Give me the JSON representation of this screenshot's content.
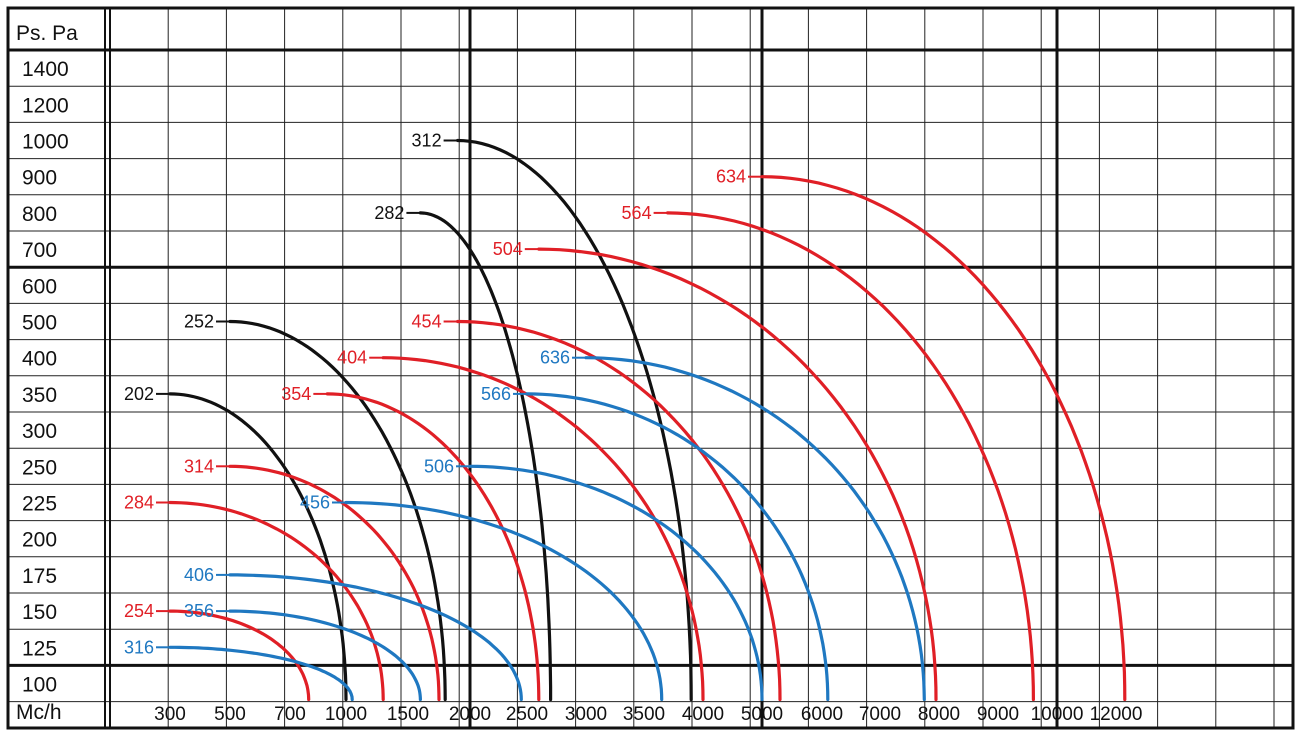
{
  "chart_data": {
    "type": "line",
    "title": "",
    "xlabel": "Mc/h",
    "ylabel": "Ps. Pa",
    "x_ticks": [
      "300",
      "500",
      "700",
      "1000",
      "1500",
      "2000",
      "2500",
      "3000",
      "3500",
      "4000",
      "5000",
      "6000",
      "7000",
      "8000",
      "9000",
      "10000",
      "12000"
    ],
    "y_ticks": [
      "1400",
      "1200",
      "1000",
      "900",
      "800",
      "700",
      "600",
      "500",
      "400",
      "350",
      "300",
      "250",
      "225",
      "200",
      "175",
      "150",
      "125",
      "100"
    ],
    "colors": {
      "black": "#111111",
      "red": "#e01f26",
      "blue": "#1f78c1"
    },
    "series": [
      {
        "name": "202",
        "color": "black",
        "start_x": 300,
        "start_y": 350,
        "end_x": 1000
      },
      {
        "name": "252",
        "color": "black",
        "start_x": 500,
        "start_y": 500,
        "end_x": 1800
      },
      {
        "name": "282",
        "color": "black",
        "start_x": 1600,
        "start_y": 800,
        "end_x": 2700
      },
      {
        "name": "312",
        "color": "black",
        "start_x": 1900,
        "start_y": 1000,
        "end_x": 3900
      },
      {
        "name": "254",
        "color": "red",
        "start_x": 300,
        "start_y": 150,
        "end_x": 800
      },
      {
        "name": "284",
        "color": "red",
        "start_x": 300,
        "start_y": 225,
        "end_x": 1300
      },
      {
        "name": "314",
        "color": "red",
        "start_x": 500,
        "start_y": 250,
        "end_x": 1750
      },
      {
        "name": "354",
        "color": "red",
        "start_x": 900,
        "start_y": 350,
        "end_x": 2600
      },
      {
        "name": "404",
        "color": "red",
        "start_x": 1300,
        "start_y": 400,
        "end_x": 4000
      },
      {
        "name": "454",
        "color": "red",
        "start_x": 1900,
        "start_y": 500,
        "end_x": 5300
      },
      {
        "name": "504",
        "color": "red",
        "start_x": 2600,
        "start_y": 700,
        "end_x": 7950
      },
      {
        "name": "564",
        "color": "red",
        "start_x": 3700,
        "start_y": 800,
        "end_x": 9600
      },
      {
        "name": "634",
        "color": "red",
        "start_x": 5000,
        "start_y": 900,
        "end_x": 12300
      },
      {
        "name": "316",
        "color": "blue",
        "start_x": 300,
        "start_y": 125,
        "end_x": 1050
      },
      {
        "name": "356",
        "color": "blue",
        "start_x": 500,
        "start_y": 150,
        "end_x": 1600
      },
      {
        "name": "406",
        "color": "blue",
        "start_x": 500,
        "start_y": 175,
        "end_x": 2450
      },
      {
        "name": "456",
        "color": "blue",
        "start_x": 1000,
        "start_y": 225,
        "end_x": 3650
      },
      {
        "name": "506",
        "color": "blue",
        "start_x": 2000,
        "start_y": 250,
        "end_x": 5000
      },
      {
        "name": "566",
        "color": "blue",
        "start_x": 2500,
        "start_y": 350,
        "end_x": 6100
      },
      {
        "name": "636",
        "color": "blue",
        "start_x": 3000,
        "start_y": 400,
        "end_x": 7750
      }
    ]
  }
}
